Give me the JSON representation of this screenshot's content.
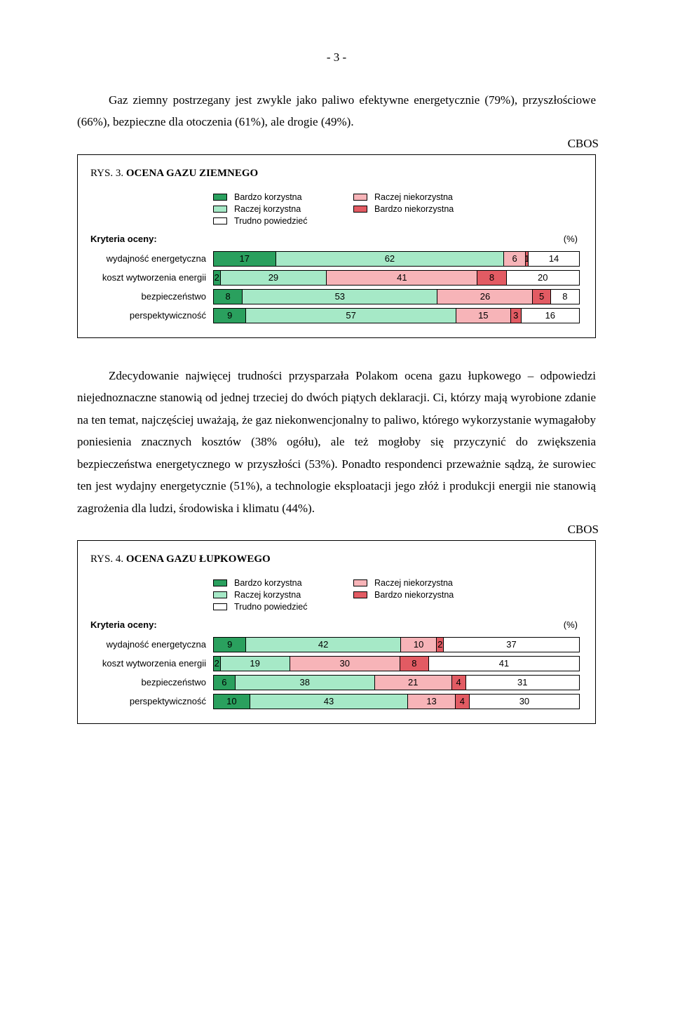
{
  "page_number": "- 3 -",
  "cbos_label": "CBOS",
  "colors": {
    "bardzo_korzystna": "#2aa05e",
    "raczej_korzystna": "#a6e9c7",
    "trudno_powiedziec": "#ffffff",
    "raczej_niekorzystna": "#f7b4b8",
    "bardzo_niekorzystna": "#e25b63"
  },
  "legend": {
    "bardzo_korzystna": "Bardzo  korzystna",
    "raczej_korzystna": "Raczej  korzystna",
    "trudno_powiedziec": "Trudno  powiedzieć",
    "raczej_niekorzystna": "Raczej  niekorzystna",
    "bardzo_niekorzystna": "Bardzo  niekorzystna"
  },
  "criteria_header": "Kryteria oceny:",
  "pct": "(%)",
  "para1": "Gaz ziemny postrzegany jest zwykle jako paliwo efektywne energetycznie (79%), przyszłościowe (66%), bezpieczne dla otoczenia (61%), ale drogie (49%).",
  "para2": "Zdecydowanie najwięcej trudności przysparzała Polakom ocena gazu łupkowego – odpowiedzi niejednoznaczne stanowią od jednej trzeciej do dwóch piątych deklaracji. Ci, którzy mają wyrobione zdanie na ten temat, najczęściej uważają, że gaz niekonwencjonalny to paliwo, którego wykorzystanie wymagałoby poniesienia znacznych kosztów (38% ogółu), ale też mogłoby się przyczynić do zwiększenia bezpieczeństwa energetycznego w przyszłości (53%). Ponadto respondenci przeważnie sądzą, że surowiec ten jest wydajny energetycznie (51%), a technologie eksploatacji jego złóż i produkcji energii nie  stanowią zagrożenia dla ludzi, środowiska i klimatu (44%).",
  "chart3": {
    "title_prefix": "RYS. 3. ",
    "title_bold": "OCENA GAZU ZIEMNEGO",
    "rows": [
      {
        "label": "wydajność energetyczna",
        "values": [
          17,
          62,
          6,
          1,
          14
        ]
      },
      {
        "label": "koszt wytworzenia energii",
        "values": [
          2,
          29,
          41,
          8,
          20
        ]
      },
      {
        "label": "bezpieczeństwo",
        "values": [
          8,
          53,
          26,
          5,
          8
        ]
      },
      {
        "label": "perspektywiczność",
        "values": [
          9,
          57,
          15,
          3,
          16
        ]
      }
    ]
  },
  "chart4": {
    "title_prefix": "RYS. 4. ",
    "title_bold": "OCENA GAZU ŁUPKOWEGO",
    "rows": [
      {
        "label": "wydajność energetyczna",
        "values": [
          9,
          42,
          10,
          2,
          37
        ]
      },
      {
        "label": "koszt wytworzenia energii",
        "values": [
          2,
          19,
          30,
          8,
          41
        ]
      },
      {
        "label": "bezpieczeństwo",
        "values": [
          6,
          38,
          21,
          4,
          31
        ]
      },
      {
        "label": "perspektywiczność",
        "values": [
          10,
          43,
          13,
          4,
          30
        ]
      }
    ]
  }
}
